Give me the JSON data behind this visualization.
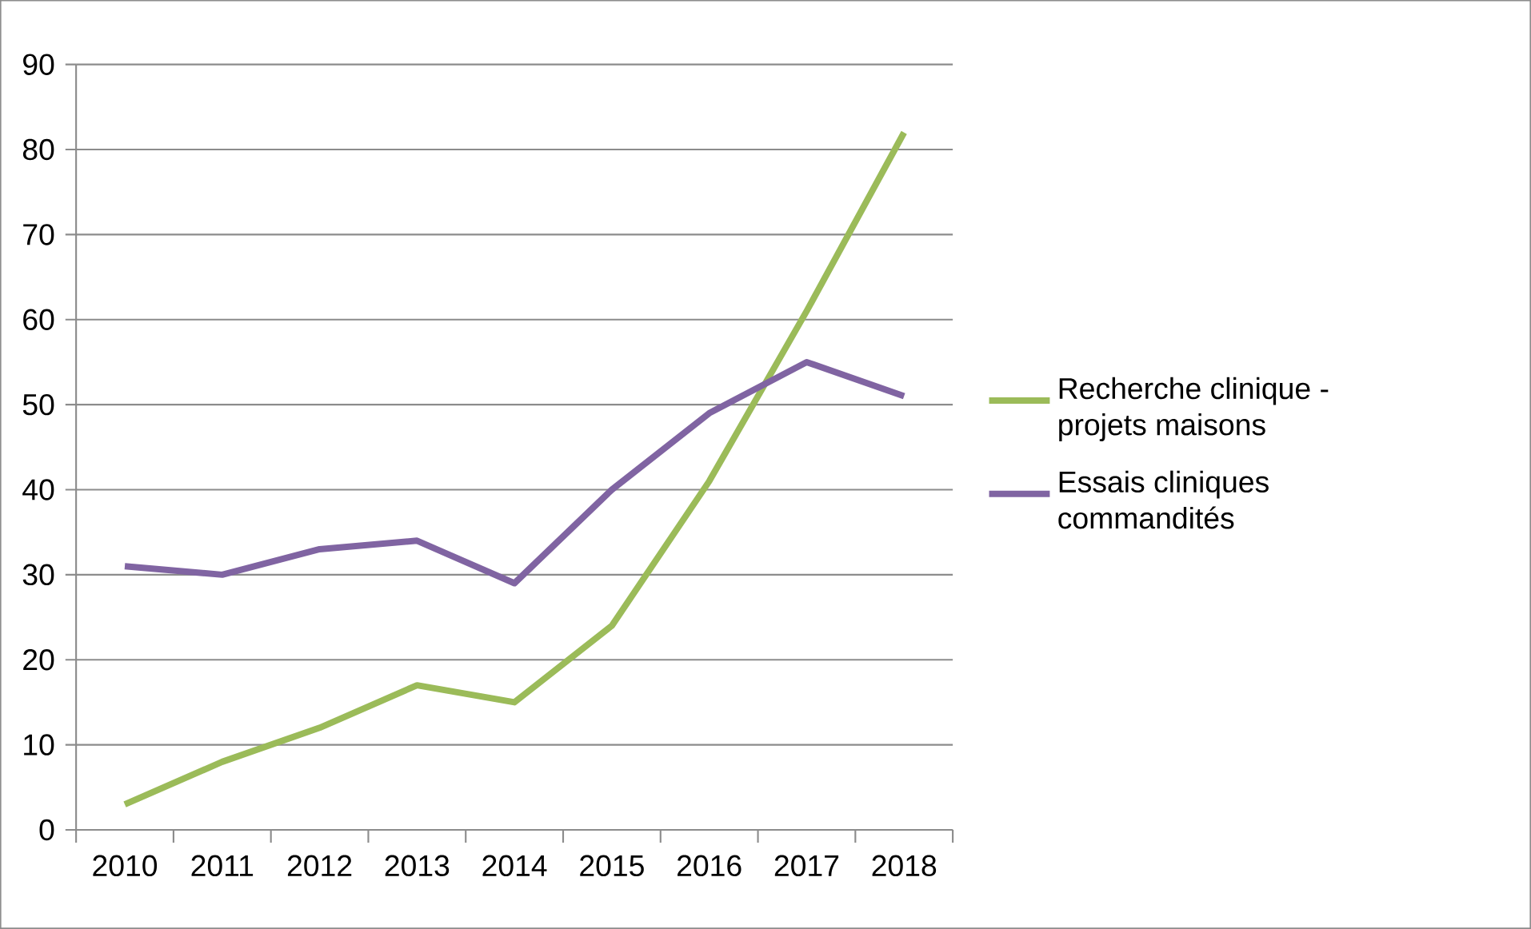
{
  "chart_data": {
    "type": "line",
    "categories": [
      "2010",
      "2011",
      "2012",
      "2013",
      "2014",
      "2015",
      "2016",
      "2017",
      "2018"
    ],
    "series": [
      {
        "name": "Recherche clinique - projets maisons",
        "color": "#9bbb59",
        "values": [
          3,
          8,
          12,
          17,
          15,
          24,
          41,
          61,
          82
        ]
      },
      {
        "name": "Essais cliniques commandités",
        "color": "#8064a2",
        "values": [
          31,
          30,
          33,
          34,
          29,
          40,
          49,
          55,
          51
        ]
      }
    ],
    "ylim": [
      0,
      90
    ],
    "yticks": [
      0,
      10,
      20,
      30,
      40,
      50,
      60,
      70,
      80,
      90
    ],
    "grid": "y",
    "legend": "right",
    "marker": "none",
    "line_style": "solid"
  }
}
